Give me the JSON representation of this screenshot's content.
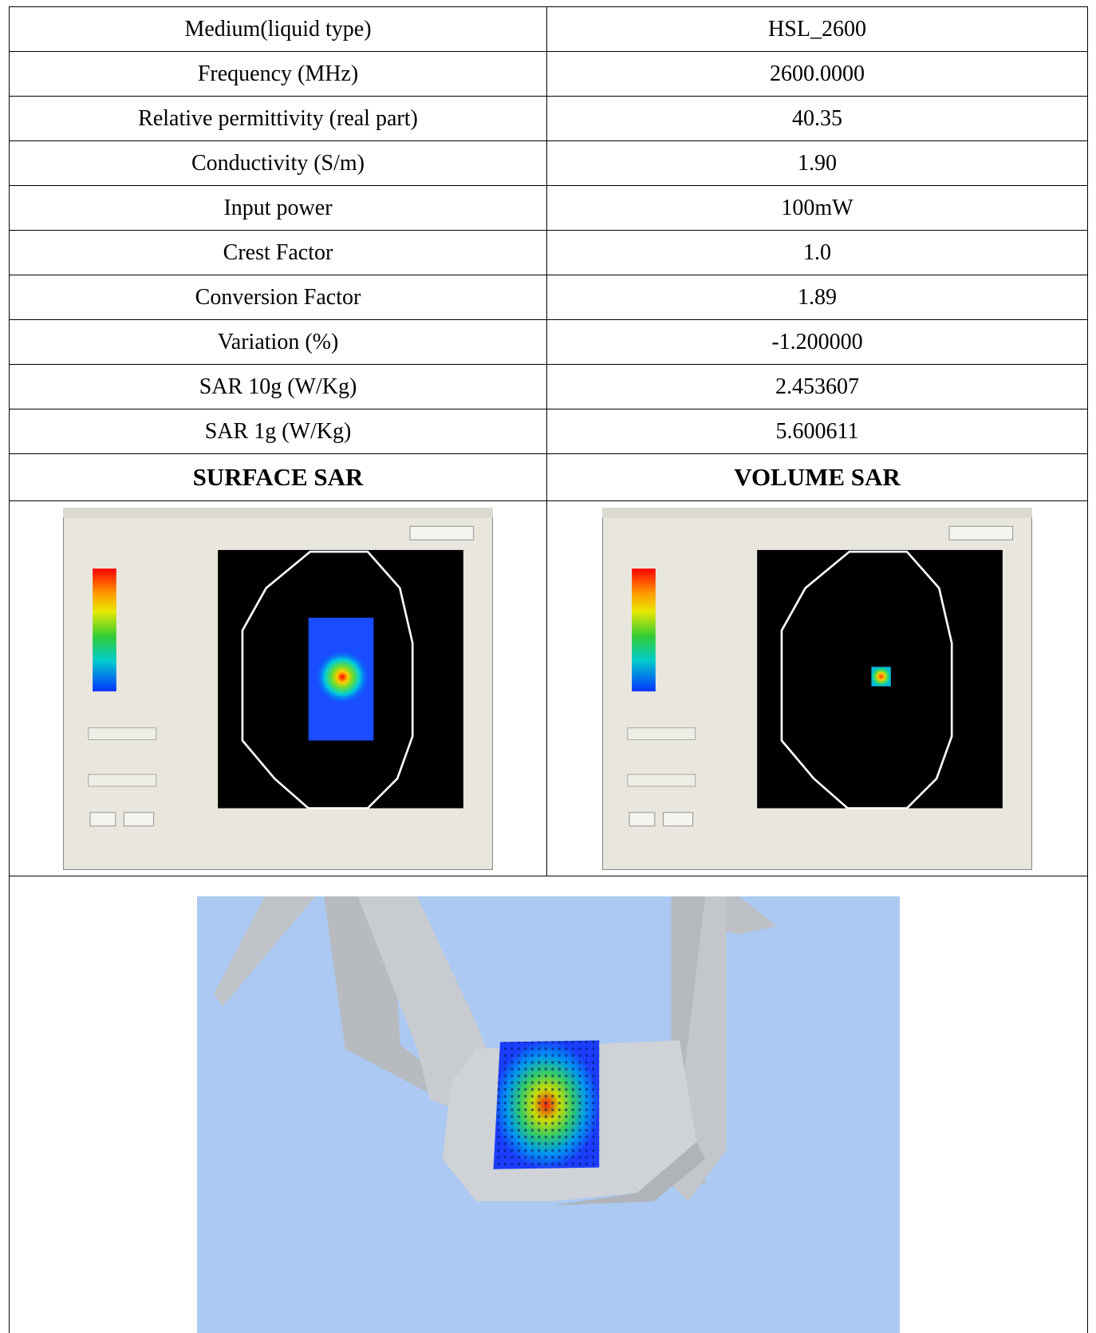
{
  "table": {
    "rows": [
      [
        "Medium(liquid type)",
        "HSL_2600"
      ],
      [
        "Frequency (MHz)",
        "2600.0000"
      ],
      [
        "Relative permittivity (real part)",
        "40.35"
      ],
      [
        "Conductivity (S/m)",
        "1.90"
      ],
      [
        "Input power",
        "100mW"
      ],
      [
        "Crest Factor",
        "1.0"
      ],
      [
        "Conversion Factor",
        "1.89"
      ],
      [
        "Variation (%)",
        "-1.200000"
      ],
      [
        "SAR 10g (W/Kg)",
        "2.453607"
      ],
      [
        "SAR 1g (W/Kg)",
        "5.600611"
      ]
    ],
    "section_headers": [
      "SURFACE SAR",
      "VOLUME SAR"
    ]
  }
}
